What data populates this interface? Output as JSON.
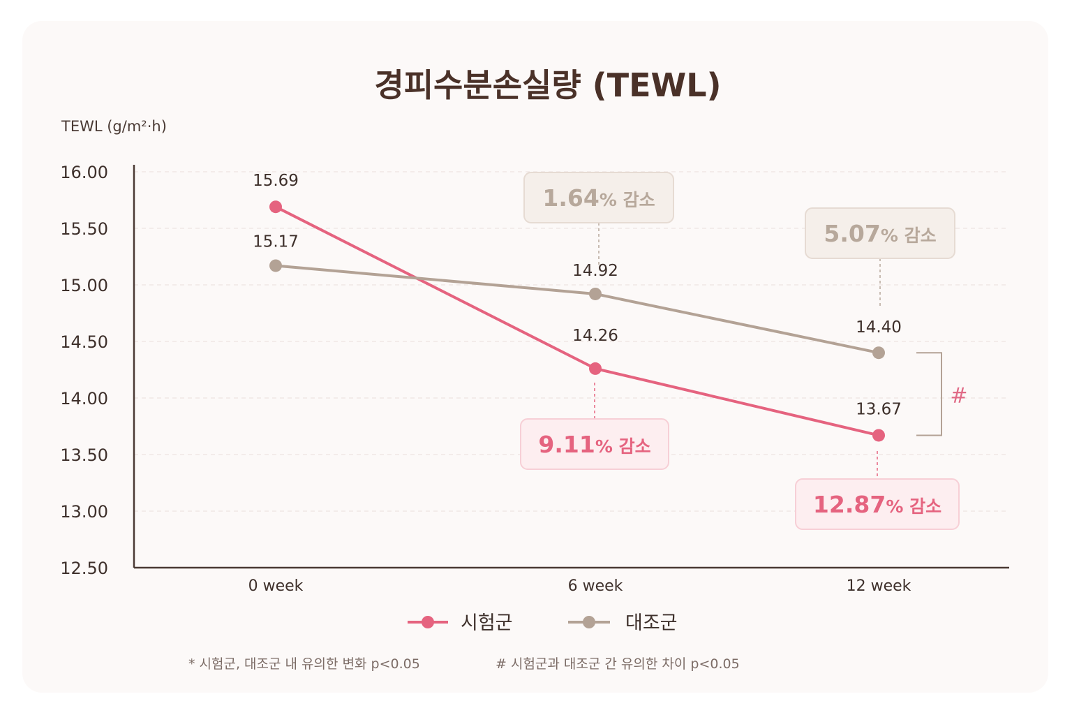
{
  "title": "경피수분손실량 (TEWL)",
  "colors": {
    "test": "#e5637f",
    "control": "#b3a295",
    "axis": "#4a3a34",
    "grid": "#eadfdb"
  },
  "chart_data": {
    "type": "line",
    "title": "경피수분손실량 (TEWL)",
    "ylabel": "TEWL (g/m²·h)",
    "xlabel": "",
    "categories": [
      "0 week",
      "6 week",
      "12 week"
    ],
    "ylim": [
      12.5,
      16.0
    ],
    "yticks": [
      "16.00",
      "15.50",
      "15.00",
      "14.50",
      "14.00",
      "13.50",
      "13.00",
      "12.50"
    ],
    "grid": true,
    "legend_position": "bottom",
    "series": [
      {
        "name": "시험군",
        "values": [
          15.69,
          14.26,
          13.67
        ],
        "labels": [
          "15.69",
          "14.26",
          "13.67"
        ],
        "color": "#e5637f"
      },
      {
        "name": "대조군",
        "values": [
          15.17,
          14.92,
          14.4
        ],
        "labels": [
          "15.17",
          "14.92",
          "14.40"
        ],
        "color": "#b3a295"
      }
    ],
    "annotations": [
      {
        "series": "대조군",
        "category": "6 week",
        "value": "1.64",
        "suffix": "% 감소"
      },
      {
        "series": "대조군",
        "category": "12 week",
        "value": "5.07",
        "suffix": "% 감소"
      },
      {
        "series": "시험군",
        "category": "6 week",
        "value": "9.11",
        "suffix": "% 감소"
      },
      {
        "series": "시험군",
        "category": "12 week",
        "value": "12.87",
        "suffix": "% 감소"
      }
    ],
    "significance_mark": "#"
  },
  "footnotes": [
    "* 시험군, 대조군 내 유의한 변화 p<0.05",
    "# 시험군과 대조군 간 유의한 차이 p<0.05"
  ]
}
